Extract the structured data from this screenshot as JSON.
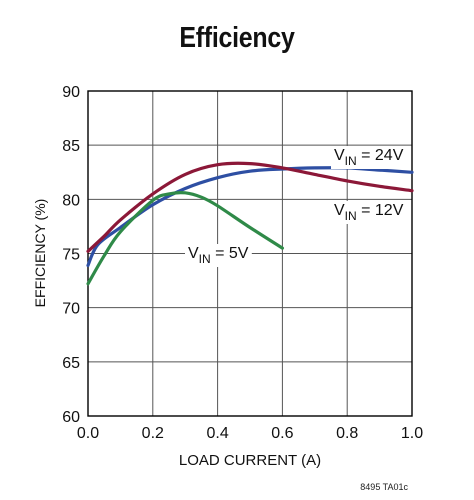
{
  "chart_data": {
    "type": "line",
    "title": "Efficiency",
    "xlabel": "LOAD CURRENT (A)",
    "ylabel": "EFFICIENCY (%)",
    "xlim": [
      0.0,
      1.0
    ],
    "ylim": [
      60,
      90
    ],
    "x_ticks": [
      "0.0",
      "0.2",
      "0.4",
      "0.6",
      "0.8",
      "1.0"
    ],
    "y_ticks": [
      "60",
      "65",
      "70",
      "75",
      "80",
      "85",
      "90"
    ],
    "grid": true,
    "legend": "inline labels",
    "series": [
      {
        "name": "VIN = 24V",
        "label_base": "V",
        "label_sub": "IN",
        "label_rest": " = 24V",
        "color": "#2e4fa3",
        "x": [
          0.0,
          0.03,
          0.1,
          0.2,
          0.3,
          0.4,
          0.5,
          0.6,
          0.7,
          0.8,
          0.9,
          1.0
        ],
        "y": [
          73.9,
          75.8,
          77.4,
          79.5,
          81.0,
          82.0,
          82.6,
          82.8,
          82.9,
          82.9,
          82.7,
          82.5
        ]
      },
      {
        "name": "VIN = 12V",
        "label_base": "V",
        "label_sub": "IN",
        "label_rest": " = 12V",
        "color": "#8c1838",
        "x": [
          0.0,
          0.05,
          0.1,
          0.2,
          0.3,
          0.4,
          0.5,
          0.6,
          0.7,
          0.8,
          0.9,
          1.0
        ],
        "y": [
          75.2,
          76.6,
          78.1,
          80.5,
          82.3,
          83.2,
          83.3,
          82.9,
          82.3,
          81.7,
          81.2,
          80.8
        ]
      },
      {
        "name": "VIN = 5V",
        "label_base": "V",
        "label_sub": "IN",
        "label_rest": " = 5V",
        "color": "#2f8a48",
        "x": [
          0.0,
          0.05,
          0.1,
          0.2,
          0.25,
          0.3,
          0.35,
          0.4,
          0.5,
          0.6
        ],
        "y": [
          72.2,
          74.8,
          77.0,
          79.9,
          80.5,
          80.6,
          80.2,
          79.4,
          77.4,
          75.5
        ]
      }
    ]
  },
  "footnote": "8495 TA01c"
}
